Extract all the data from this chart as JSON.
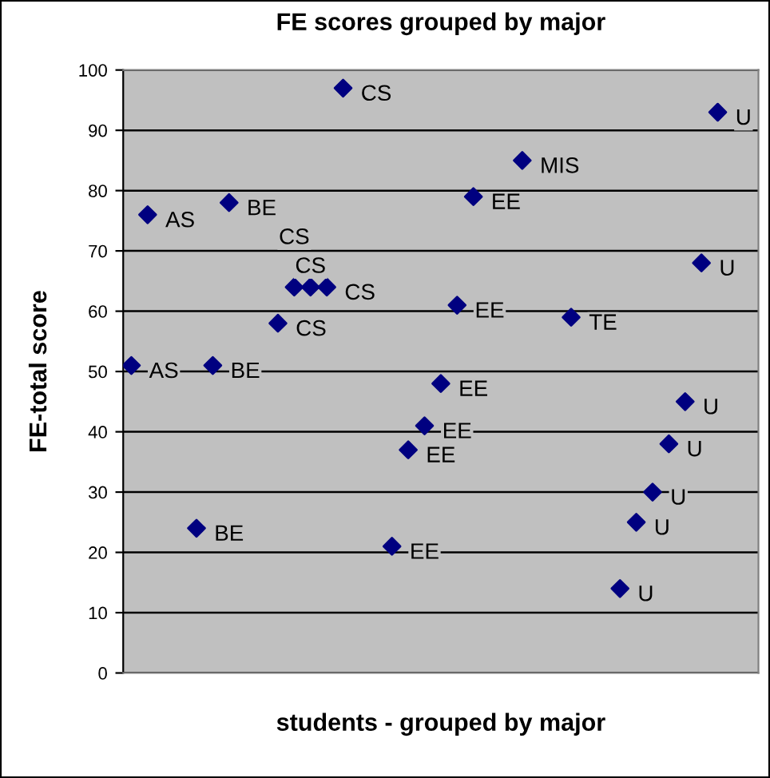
{
  "chart_data": {
    "type": "scatter",
    "title": "FE scores grouped by major",
    "xlabel": "students - grouped by major",
    "ylabel": "FE-total score",
    "categories": [
      null,
      null,
      null,
      null,
      null,
      null,
      null,
      null,
      null,
      null,
      null,
      null,
      null,
      null,
      null,
      null,
      null,
      null,
      null,
      null,
      null,
      null,
      null,
      null,
      null,
      null,
      null,
      null,
      null,
      null,
      null,
      null,
      null,
      null,
      null,
      null,
      null,
      null,
      null
    ],
    "series": [
      {
        "name": "AS",
        "color": "#000080",
        "values": [
          51,
          76,
          null,
          null,
          null,
          null,
          null,
          null,
          null,
          null,
          null,
          null,
          null,
          null,
          null,
          null,
          null,
          null,
          null,
          null,
          null,
          null,
          null,
          null,
          null,
          null,
          null,
          null,
          null,
          null,
          null,
          null,
          null,
          null,
          null,
          null,
          null,
          null,
          null
        ]
      },
      {
        "name": "BE",
        "color": "#000080",
        "values": [
          null,
          null,
          null,
          null,
          24,
          51,
          78,
          null,
          null,
          null,
          null,
          null,
          null,
          null,
          null,
          null,
          null,
          null,
          null,
          null,
          null,
          null,
          null,
          null,
          null,
          null,
          null,
          null,
          null,
          null,
          null,
          null,
          null,
          null,
          null,
          null,
          null,
          null,
          null
        ]
      },
      {
        "name": "CS",
        "color": "#000080",
        "values": [
          null,
          null,
          null,
          null,
          null,
          null,
          null,
          null,
          null,
          58,
          64,
          64,
          64,
          97,
          null,
          null,
          null,
          null,
          null,
          null,
          null,
          null,
          null,
          null,
          null,
          null,
          null,
          null,
          null,
          null,
          null,
          null,
          null,
          null,
          null,
          null,
          null,
          null,
          null
        ]
      },
      {
        "name": "EE",
        "color": "#000080",
        "values": [
          null,
          null,
          null,
          null,
          null,
          null,
          null,
          null,
          null,
          null,
          null,
          null,
          null,
          null,
          null,
          null,
          21,
          37,
          41,
          48,
          61,
          79,
          null,
          null,
          null,
          null,
          null,
          null,
          null,
          null,
          null,
          null,
          null,
          null,
          null,
          null,
          null,
          null,
          null
        ]
      },
      {
        "name": "MIS",
        "color": "#000080",
        "values": [
          null,
          null,
          null,
          null,
          null,
          null,
          null,
          null,
          null,
          null,
          null,
          null,
          null,
          null,
          null,
          null,
          null,
          null,
          null,
          null,
          null,
          null,
          null,
          null,
          85,
          null,
          null,
          null,
          null,
          null,
          null,
          null,
          null,
          null,
          null,
          null,
          null,
          null,
          null
        ]
      },
      {
        "name": "TE",
        "color": "#000080",
        "values": [
          null,
          null,
          null,
          null,
          null,
          null,
          null,
          null,
          null,
          null,
          null,
          null,
          null,
          null,
          null,
          null,
          null,
          null,
          null,
          null,
          null,
          null,
          null,
          null,
          null,
          null,
          null,
          59,
          null,
          null,
          null,
          null,
          null,
          null,
          null,
          null,
          null,
          null,
          null
        ]
      },
      {
        "name": "U",
        "color": "#000080",
        "values": [
          null,
          null,
          null,
          null,
          null,
          null,
          null,
          null,
          null,
          null,
          null,
          null,
          null,
          null,
          null,
          null,
          null,
          null,
          null,
          null,
          null,
          null,
          null,
          null,
          null,
          null,
          null,
          null,
          null,
          null,
          14,
          25,
          30,
          38,
          45,
          68,
          93,
          null,
          null
        ]
      }
    ],
    "ylim": [
      0,
      100
    ],
    "yticks": [
      0,
      10,
      20,
      30,
      40,
      50,
      60,
      70,
      80,
      90,
      100
    ],
    "grid": "y",
    "marker": "diamond",
    "legend": false,
    "tick_labels": "y"
  }
}
